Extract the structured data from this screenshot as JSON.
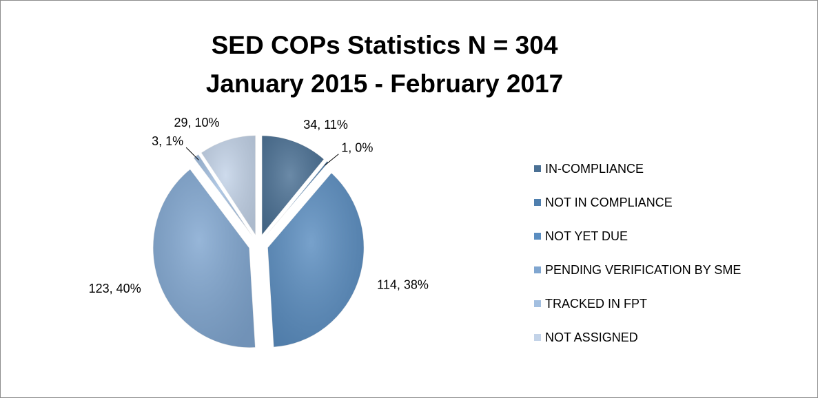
{
  "chart_data": {
    "type": "pie",
    "title": [
      "SED COPs Statistics N = 304",
      "January 2015 - February 2017"
    ],
    "categories": [
      "IN-COMPLIANCE",
      "NOT IN COMPLIANCE",
      "NOT YET DUE",
      "PENDING VERIFICATION BY SME",
      "TRACKED IN FPT",
      "NOT ASSIGNED"
    ],
    "values": [
      34,
      1,
      114,
      123,
      3,
      29
    ],
    "value_labels": [
      "34, 11%",
      "1, 0%",
      "114, 38%",
      "123, 40%",
      "3, 1%",
      "29, 10%"
    ],
    "colors": [
      "#4a7094",
      "#4f7fae",
      "#5a8dc0",
      "#80a6d0",
      "#a3bfe0",
      "#c3d3e8"
    ],
    "legend": "right"
  }
}
